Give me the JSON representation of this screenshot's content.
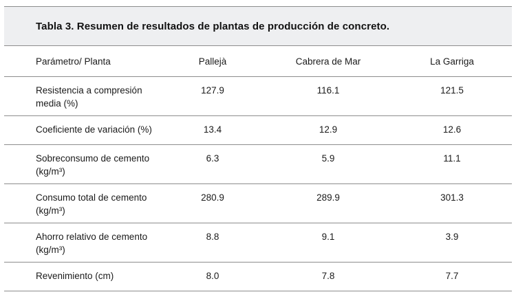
{
  "title": "Tabla 3. Resumen de resultados de plantas de producción de concreto.",
  "table": {
    "headers": [
      "Parámetro/ Planta",
      "Pallejà",
      "Cabrera de Mar",
      "La Garriga"
    ],
    "rows": [
      {
        "param": "Resistencia a compresión media (%)",
        "values": [
          "127.9",
          "116.1",
          "121.5"
        ]
      },
      {
        "param": "Coeficiente de variación (%)",
        "values": [
          "13.4",
          "12.9",
          "12.6"
        ]
      },
      {
        "param": "Sobreconsumo de cemento (kg/m³)",
        "values": [
          "6.3",
          "5.9",
          "11.1"
        ]
      },
      {
        "param": "Consumo total de cemento (kg/m³)",
        "values": [
          "280.9",
          "289.9",
          "301.3"
        ]
      },
      {
        "param": "Ahorro relativo de cemento (kg/m³)",
        "values": [
          "8.8",
          "9.1",
          "3.9"
        ]
      },
      {
        "param": "Revenimiento (cm)",
        "values": [
          "8.0",
          "7.8",
          "7.7"
        ]
      }
    ]
  }
}
